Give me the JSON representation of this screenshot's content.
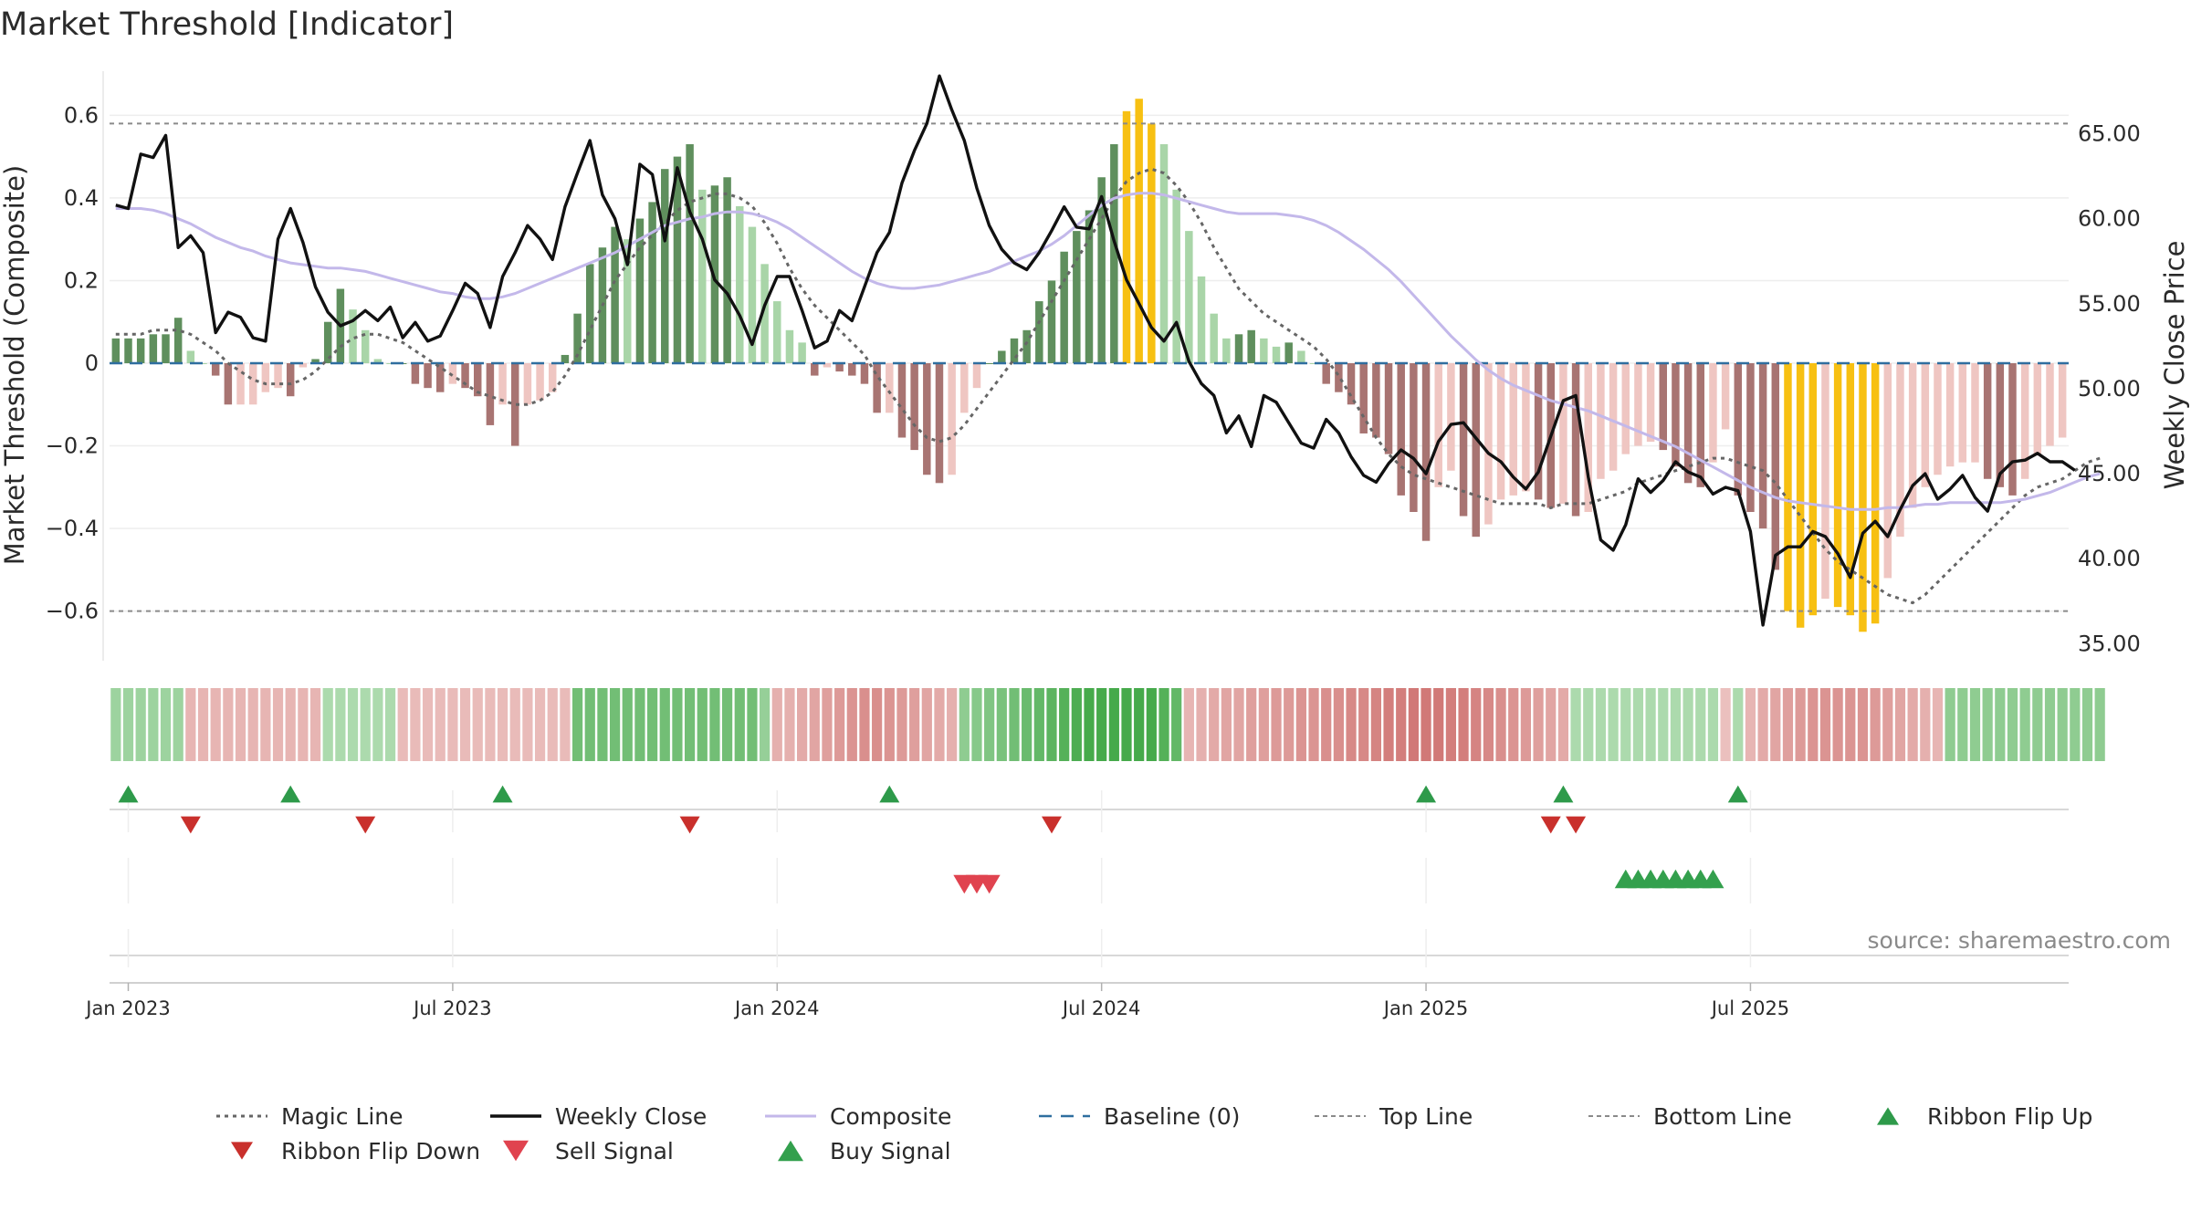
{
  "chart_data": {
    "type": "bar",
    "title": "Market Threshold [Indicator]",
    "ylabel": "Market Threshold (Composite)",
    "y2label": "Weekly Close Price",
    "ylim": [
      -0.72,
      0.72
    ],
    "y2lim": [
      34,
      69
    ],
    "yticks": [
      0.6,
      0.4,
      0.2,
      0,
      -0.2,
      -0.4,
      -0.6
    ],
    "ytick_labels": [
      "0.6",
      "0.4",
      "0.2",
      "0",
      "−0.2",
      "−0.4",
      "−0.6"
    ],
    "y2ticks": [
      65,
      60,
      55,
      50,
      45,
      40,
      35
    ],
    "y2tick_labels": [
      "65.00",
      "60.00",
      "55.00",
      "50.00",
      "45.00",
      "40.00",
      "35.00"
    ],
    "top_line": 0.58,
    "bottom_line": -0.6,
    "date_ticks": [
      {
        "week": 1,
        "label": "Jan 2023"
      },
      {
        "week": 27,
        "label": "Jul 2023"
      },
      {
        "week": 53,
        "label": "Jan 2024"
      },
      {
        "week": 79,
        "label": "Jul 2024"
      },
      {
        "week": 105,
        "label": "Jan 2025"
      },
      {
        "week": 131,
        "label": "Jul 2025"
      }
    ],
    "composite": [
      0.06,
      0.06,
      0.06,
      0.07,
      0.07,
      0.11,
      0.03,
      0.0,
      -0.03,
      -0.1,
      -0.1,
      -0.1,
      -0.07,
      -0.06,
      -0.08,
      -0.01,
      0.01,
      0.1,
      0.18,
      0.13,
      0.08,
      0.01,
      0.0,
      0.0,
      -0.05,
      -0.06,
      -0.07,
      -0.05,
      -0.06,
      -0.08,
      -0.15,
      -0.1,
      -0.2,
      -0.1,
      -0.09,
      -0.07,
      0.02,
      0.12,
      0.24,
      0.28,
      0.33,
      0.3,
      0.35,
      0.39,
      0.47,
      0.5,
      0.53,
      0.42,
      0.43,
      0.45,
      0.38,
      0.33,
      0.24,
      0.15,
      0.08,
      0.05,
      -0.03,
      -0.01,
      -0.02,
      -0.03,
      -0.05,
      -0.12,
      -0.12,
      -0.18,
      -0.21,
      -0.27,
      -0.29,
      -0.27,
      -0.12,
      -0.06,
      0.0,
      0.03,
      0.06,
      0.08,
      0.15,
      0.2,
      0.27,
      0.32,
      0.37,
      0.45,
      0.53,
      0.61,
      0.64,
      0.58,
      0.53,
      0.42,
      0.32,
      0.21,
      0.12,
      0.06,
      0.07,
      0.08,
      0.06,
      0.04,
      0.05,
      0.03,
      0.0,
      -0.05,
      -0.07,
      -0.1,
      -0.17,
      -0.18,
      -0.22,
      -0.32,
      -0.36,
      -0.43,
      -0.3,
      -0.26,
      -0.37,
      -0.42,
      -0.39,
      -0.33,
      -0.32,
      -0.31,
      -0.33,
      -0.35,
      -0.34,
      -0.37,
      -0.36,
      -0.28,
      -0.26,
      -0.22,
      -0.2,
      -0.19,
      -0.21,
      -0.25,
      -0.29,
      -0.3,
      -0.24,
      -0.16,
      -0.32,
      -0.36,
      -0.4,
      -0.5,
      -0.6,
      -0.64,
      -0.61,
      -0.57,
      -0.59,
      -0.61,
      -0.65,
      -0.63,
      -0.52,
      -0.42,
      -0.35,
      -0.3,
      -0.27,
      -0.25,
      -0.24,
      -0.24,
      -0.28,
      -0.3,
      -0.32,
      -0.28,
      -0.22,
      -0.2,
      -0.18
    ],
    "weekly_close": [
      60.8,
      60.6,
      63.8,
      63.6,
      64.9,
      58.3,
      59.0,
      58.0,
      53.3,
      54.5,
      54.2,
      53.0,
      52.8,
      58.8,
      60.6,
      58.6,
      56.0,
      54.5,
      53.7,
      54.0,
      54.6,
      54.0,
      54.8,
      53.0,
      53.9,
      52.8,
      53.1,
      54.6,
      56.2,
      55.6,
      53.6,
      56.6,
      58.0,
      59.6,
      58.8,
      57.6,
      60.7,
      62.7,
      64.6,
      61.4,
      60.0,
      57.3,
      63.2,
      62.6,
      58.7,
      63.0,
      60.4,
      58.8,
      56.4,
      55.6,
      54.3,
      52.6,
      54.9,
      56.6,
      56.6,
      54.6,
      52.4,
      52.8,
      54.6,
      54.0,
      56.0,
      58.0,
      59.2,
      62.1,
      64.0,
      65.6,
      68.4,
      66.4,
      64.6,
      61.8,
      59.6,
      58.2,
      57.4,
      57.0,
      58.0,
      59.3,
      60.7,
      59.5,
      59.4,
      61.3,
      58.7,
      56.4,
      55.0,
      53.6,
      52.8,
      53.9,
      51.6,
      50.3,
      49.6,
      47.4,
      48.4,
      46.6,
      49.6,
      49.2,
      48.0,
      46.8,
      46.5,
      48.2,
      47.4,
      46.0,
      44.9,
      44.5,
      45.6,
      46.4,
      45.9,
      45.0,
      46.9,
      47.9,
      48.0,
      47.1,
      46.2,
      45.7,
      44.8,
      44.1,
      45.1,
      47.2,
      49.3,
      49.6,
      44.8,
      41.1,
      40.5,
      42.0,
      44.7,
      43.9,
      44.6,
      45.7,
      45.1,
      44.8,
      43.8,
      44.2,
      44.0,
      41.6,
      36.1,
      40.2,
      40.7,
      40.7,
      41.6,
      41.3,
      40.3,
      38.9,
      41.5,
      42.2,
      41.3,
      42.9,
      44.3,
      45.0,
      43.5,
      44.1,
      44.9,
      43.6,
      42.8,
      45.0,
      45.7,
      45.8,
      46.2,
      45.7,
      45.7,
      45.2
    ],
    "composite_smooth": [
      60.6,
      60.6,
      60.6,
      60.5,
      60.3,
      60.0,
      59.7,
      59.3,
      58.9,
      58.6,
      58.3,
      58.1,
      57.8,
      57.6,
      57.4,
      57.3,
      57.2,
      57.1,
      57.1,
      57.0,
      56.9,
      56.7,
      56.5,
      56.3,
      56.1,
      55.9,
      55.7,
      55.6,
      55.4,
      55.3,
      55.3,
      55.4,
      55.6,
      55.9,
      56.2,
      56.5,
      56.8,
      57.1,
      57.4,
      57.7,
      58.0,
      58.4,
      58.8,
      59.2,
      59.6,
      59.8,
      60.0,
      60.1,
      60.3,
      60.4,
      60.4,
      60.3,
      60.1,
      59.8,
      59.4,
      58.9,
      58.4,
      57.9,
      57.4,
      56.9,
      56.5,
      56.2,
      56.0,
      55.9,
      55.9,
      56.0,
      56.1,
      56.3,
      56.5,
      56.7,
      56.9,
      57.2,
      57.5,
      57.8,
      58.1,
      58.5,
      59.0,
      59.6,
      60.2,
      60.8,
      61.2,
      61.4,
      61.5,
      61.5,
      61.4,
      61.2,
      61.0,
      60.8,
      60.6,
      60.4,
      60.3,
      60.3,
      60.3,
      60.3,
      60.2,
      60.1,
      59.9,
      59.6,
      59.2,
      58.7,
      58.2,
      57.6,
      57.0,
      56.3,
      55.5,
      54.7,
      53.9,
      53.1,
      52.4,
      51.7,
      51.1,
      50.6,
      50.2,
      49.9,
      49.6,
      49.3,
      49.1,
      48.9,
      48.7,
      48.4,
      48.1,
      47.8,
      47.5,
      47.2,
      46.9,
      46.6,
      46.2,
      45.8,
      45.4,
      45.0,
      44.6,
      44.2,
      43.9,
      43.6,
      43.4,
      43.3,
      43.2,
      43.1,
      43.0,
      42.9,
      42.9,
      42.9,
      43.0,
      43.0,
      43.1,
      43.2,
      43.2,
      43.3,
      43.3,
      43.3,
      43.3,
      43.3,
      43.4,
      43.5,
      43.7,
      43.9,
      44.2,
      44.5,
      44.8,
      45.0
    ],
    "magic_line": [
      0.07,
      0.07,
      0.07,
      0.08,
      0.08,
      0.08,
      0.07,
      0.05,
      0.03,
      0.0,
      -0.02,
      -0.04,
      -0.05,
      -0.05,
      -0.05,
      -0.04,
      -0.02,
      0.01,
      0.04,
      0.06,
      0.07,
      0.07,
      0.06,
      0.05,
      0.03,
      0.01,
      -0.01,
      -0.03,
      -0.05,
      -0.07,
      -0.08,
      -0.09,
      -0.1,
      -0.1,
      -0.09,
      -0.07,
      -0.03,
      0.02,
      0.08,
      0.14,
      0.2,
      0.24,
      0.28,
      0.31,
      0.34,
      0.37,
      0.39,
      0.4,
      0.41,
      0.41,
      0.4,
      0.38,
      0.34,
      0.29,
      0.23,
      0.18,
      0.14,
      0.11,
      0.08,
      0.05,
      0.02,
      -0.03,
      -0.07,
      -0.11,
      -0.15,
      -0.18,
      -0.19,
      -0.18,
      -0.15,
      -0.11,
      -0.07,
      -0.03,
      0.01,
      0.05,
      0.1,
      0.15,
      0.2,
      0.25,
      0.3,
      0.35,
      0.4,
      0.44,
      0.46,
      0.47,
      0.46,
      0.43,
      0.39,
      0.34,
      0.28,
      0.23,
      0.18,
      0.15,
      0.12,
      0.1,
      0.08,
      0.06,
      0.04,
      0.01,
      -0.03,
      -0.08,
      -0.13,
      -0.18,
      -0.22,
      -0.25,
      -0.27,
      -0.28,
      -0.29,
      -0.3,
      -0.31,
      -0.32,
      -0.33,
      -0.34,
      -0.34,
      -0.34,
      -0.34,
      -0.35,
      -0.34,
      -0.34,
      -0.34,
      -0.33,
      -0.32,
      -0.31,
      -0.29,
      -0.28,
      -0.27,
      -0.26,
      -0.25,
      -0.24,
      -0.23,
      -0.23,
      -0.24,
      -0.25,
      -0.26,
      -0.29,
      -0.33,
      -0.37,
      -0.41,
      -0.45,
      -0.48,
      -0.5,
      -0.52,
      -0.54,
      -0.56,
      -0.57,
      -0.58,
      -0.56,
      -0.53,
      -0.5,
      -0.47,
      -0.44,
      -0.41,
      -0.38,
      -0.35,
      -0.32,
      -0.3,
      -0.29,
      -0.28,
      -0.26,
      -0.24,
      -0.23
    ],
    "ribbon": [
      0.4,
      0.4,
      0.4,
      0.4,
      0.4,
      0.4,
      -0.3,
      -0.3,
      -0.3,
      -0.3,
      -0.3,
      -0.3,
      -0.3,
      -0.3,
      -0.3,
      -0.3,
      -0.3,
      0.3,
      0.3,
      0.3,
      0.3,
      0.3,
      0.3,
      -0.25,
      -0.25,
      -0.25,
      -0.25,
      -0.25,
      -0.25,
      -0.25,
      -0.25,
      -0.25,
      -0.25,
      -0.25,
      -0.25,
      -0.25,
      -0.25,
      0.7,
      0.7,
      0.7,
      0.7,
      0.7,
      0.7,
      0.7,
      0.7,
      0.7,
      0.7,
      0.7,
      0.7,
      0.7,
      0.7,
      0.7,
      0.45,
      -0.35,
      -0.35,
      -0.4,
      -0.45,
      -0.5,
      -0.55,
      -0.6,
      -0.65,
      -0.65,
      -0.6,
      -0.55,
      -0.5,
      -0.45,
      -0.4,
      -0.35,
      0.5,
      0.55,
      0.6,
      0.65,
      0.7,
      0.75,
      0.8,
      0.85,
      0.9,
      0.95,
      1.0,
      1.0,
      1.0,
      1.0,
      1.0,
      1.0,
      0.9,
      0.8,
      -0.3,
      -0.35,
      -0.4,
      -0.45,
      -0.45,
      -0.5,
      -0.5,
      -0.55,
      -0.55,
      -0.6,
      -0.6,
      -0.65,
      -0.65,
      -0.7,
      -0.7,
      -0.75,
      -0.8,
      -0.8,
      -0.85,
      -0.85,
      -0.85,
      -0.8,
      -0.8,
      -0.75,
      -0.7,
      -0.65,
      -0.6,
      -0.55,
      -0.5,
      -0.45,
      -0.4,
      0.3,
      0.3,
      0.3,
      0.3,
      0.3,
      0.3,
      0.3,
      0.3,
      0.3,
      0.3,
      0.3,
      0.3,
      -0.2,
      0.3,
      -0.3,
      -0.4,
      -0.45,
      -0.5,
      -0.55,
      -0.6,
      -0.6,
      -0.6,
      -0.6,
      -0.6,
      -0.55,
      -0.5,
      -0.45,
      -0.4,
      -0.35,
      -0.3,
      0.5,
      0.5,
      0.5,
      0.5,
      0.5,
      0.5,
      0.5,
      0.5,
      0.5,
      0.5,
      0.5,
      0.5,
      0.5
    ],
    "ribbon_flip_up": [
      1,
      14,
      31,
      62,
      105,
      116,
      130
    ],
    "ribbon_flip_down": [
      6,
      20,
      46,
      75,
      115,
      117
    ],
    "sell_signal": [
      68,
      69,
      70
    ],
    "buy_signal": [
      121,
      122,
      123,
      124,
      125,
      126,
      127,
      128
    ],
    "source": "source: sharemaestro.com",
    "legend": [
      {
        "key": "magic",
        "label": "Magic Line"
      },
      {
        "key": "close",
        "label": "Weekly Close"
      },
      {
        "key": "composite",
        "label": "Composite"
      },
      {
        "key": "baseline",
        "label": "Baseline (0)"
      },
      {
        "key": "top",
        "label": "Top Line"
      },
      {
        "key": "bottom",
        "label": "Bottom Line"
      },
      {
        "key": "flip_up",
        "label": "Ribbon Flip Up"
      },
      {
        "key": "flip_down",
        "label": "Ribbon Flip Down"
      },
      {
        "key": "sell",
        "label": "Sell Signal"
      },
      {
        "key": "buy",
        "label": "Buy Signal"
      }
    ],
    "colors": {
      "pos_strong": "#5f8f5d",
      "pos_weak": "#a9d5a8",
      "neg_strong": "#a87472",
      "neg_weak": "#efc6c2",
      "extreme": "#f7c012",
      "close": "#111111",
      "composite_line": "#c3b8ea",
      "magic": "#666666",
      "baseline": "#2f6e9f",
      "limit": "#8a8a8a",
      "flip_up": "#2e9a4a",
      "flip_down": "#c9302c",
      "sell": "#e0434f",
      "buy": "#33a04d"
    }
  }
}
